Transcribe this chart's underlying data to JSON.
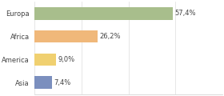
{
  "categories": [
    "Europa",
    "Africa",
    "America",
    "Asia"
  ],
  "values": [
    57.4,
    26.2,
    9.0,
    7.4
  ],
  "labels": [
    "57,4%",
    "26,2%",
    "9,0%",
    "7,4%"
  ],
  "bar_colors": [
    "#a8be8c",
    "#f0b87a",
    "#f0d070",
    "#7b8fbe"
  ],
  "background_color": "#ffffff",
  "xlim": [
    0,
    78
  ],
  "label_fontsize": 6.0,
  "tick_fontsize": 6.0,
  "bar_height": 0.55,
  "grid_color": "#dddddd",
  "grid_xticks": [
    0,
    19.5,
    39,
    58.5,
    78
  ]
}
